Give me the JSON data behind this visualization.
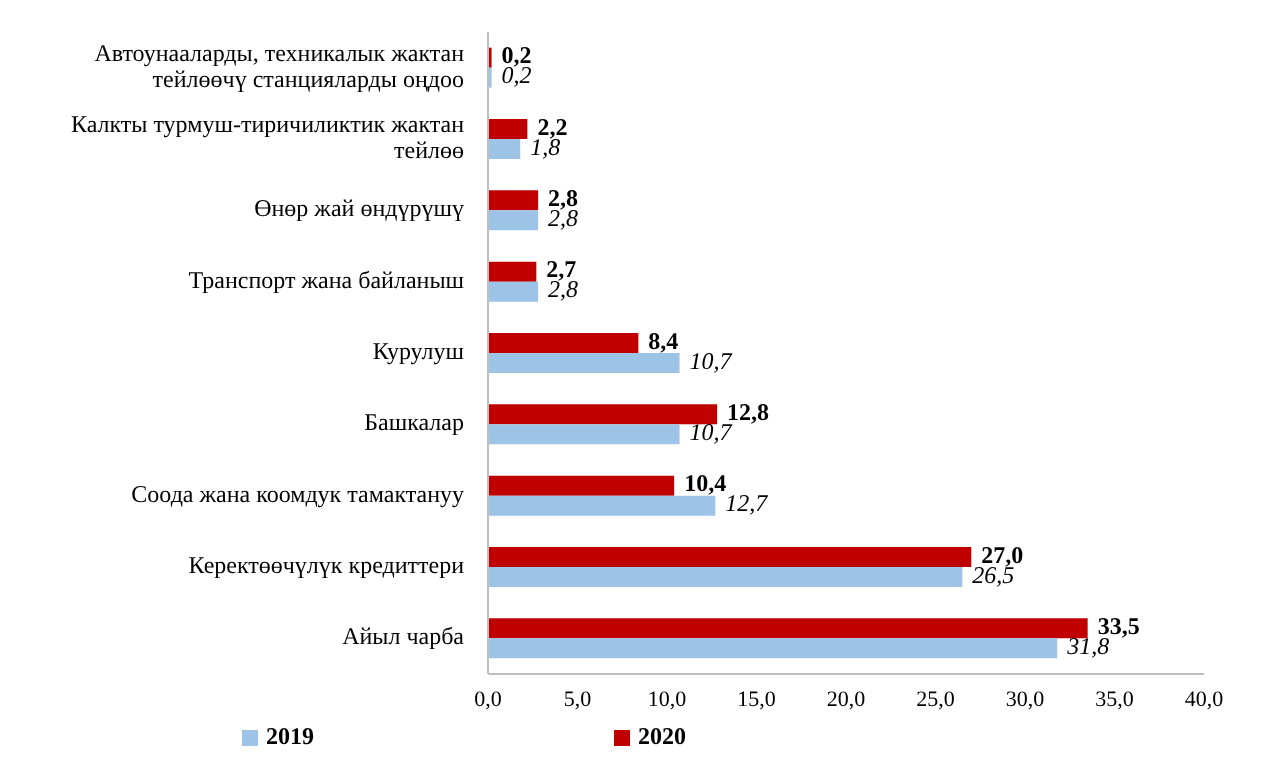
{
  "chart_data": {
    "type": "bar",
    "orientation": "horizontal",
    "categories": [
      "Автоунааларды, техникалык жактан тейлөөчү станцияларды оңдоо",
      "Калкты турмуш-тиричиликтик жактан тейлөө",
      "Өнөр жай өндүрүшү",
      "Транспорт жана байланыш",
      "Курулуш",
      "Башкалар",
      "Соода жана коомдук тамактануу",
      "Керектөөчүлүк кредиттери",
      "Айыл чарба"
    ],
    "series": [
      {
        "name": "2020",
        "color": "#c00000",
        "values": [
          0.2,
          2.2,
          2.8,
          2.7,
          8.4,
          12.8,
          10.4,
          27.0,
          33.5
        ],
        "value_labels": [
          "0,2",
          "2,2",
          "2,8",
          "2,7",
          "8,4",
          "12,8",
          "10,4",
          "27,0",
          "33,5"
        ]
      },
      {
        "name": "2019",
        "color": "#9dc3e6",
        "values": [
          0.2,
          1.8,
          2.8,
          2.8,
          10.7,
          10.7,
          12.7,
          26.5,
          31.8
        ],
        "value_labels": [
          "0,2",
          "1,8",
          "2,8",
          "2,8",
          "10,7",
          "10,7",
          "12,7",
          "26,5",
          "31,8"
        ]
      }
    ],
    "xlim": [
      0,
      40
    ],
    "xticks": [
      {
        "value": 0,
        "label": "0,0"
      },
      {
        "value": 5,
        "label": "5,0"
      },
      {
        "value": 10,
        "label": "10,0"
      },
      {
        "value": 15,
        "label": "15,0"
      },
      {
        "value": 20,
        "label": "20,0"
      },
      {
        "value": 25,
        "label": "25,0"
      },
      {
        "value": 30,
        "label": "30,0"
      },
      {
        "value": 35,
        "label": "35,0"
      },
      {
        "value": 40,
        "label": "40,0"
      }
    ],
    "grid": false,
    "legend": "bottom"
  }
}
